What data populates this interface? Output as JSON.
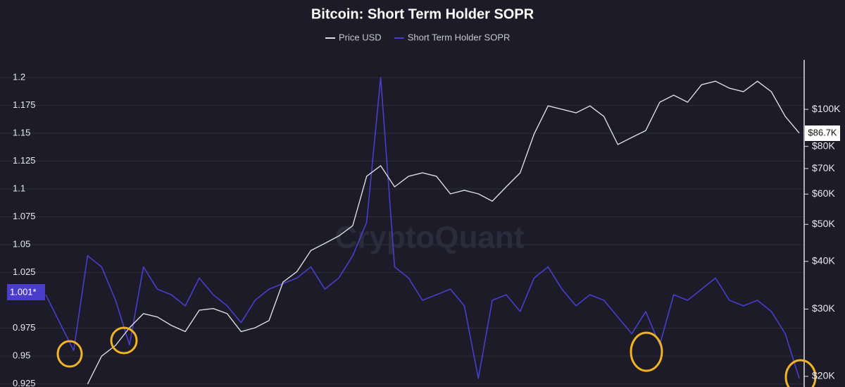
{
  "chart_data": {
    "type": "line",
    "title": "Bitcoin: Short Term Holder SOPR",
    "watermark": "CryptoQuant",
    "legend": "top",
    "grid": true,
    "series": [
      {
        "name": "Price USD",
        "color": "#dcdce4",
        "axis": "y2",
        "values": [
          null,
          null,
          null,
          19100,
          22600,
          24100,
          26800,
          29200,
          28600,
          27200,
          26200,
          29800,
          30100,
          29200,
          26200,
          26800,
          28000,
          35300,
          37600,
          42700,
          44600,
          46600,
          49600,
          66800,
          71200,
          62700,
          66800,
          68200,
          66800,
          60100,
          61400,
          60100,
          57500,
          62700,
          68200,
          86200,
          102100,
          100000,
          97900,
          102100,
          95800,
          80900,
          84400,
          88000,
          104400,
          108900,
          104400,
          116000,
          118500,
          113600,
          111200,
          118500,
          111200,
          95800,
          86700
        ]
      },
      {
        "name": "Short Term Holder SOPR",
        "color": "#4a3dcc",
        "values": [
          1.005,
          0.98,
          0.955,
          1.04,
          1.03,
          1.0,
          0.96,
          1.03,
          1.01,
          1.005,
          0.995,
          1.02,
          1.005,
          0.995,
          0.98,
          1.0,
          1.01,
          1.015,
          1.02,
          1.03,
          1.01,
          1.02,
          1.04,
          1.07,
          1.2,
          1.03,
          1.02,
          1.0,
          1.005,
          1.01,
          0.995,
          0.93,
          1.0,
          1.005,
          0.99,
          1.02,
          1.03,
          1.01,
          0.995,
          1.005,
          1.0,
          0.985,
          0.97,
          0.99,
          0.96,
          1.005,
          1.0,
          1.01,
          1.02,
          1.0,
          0.995,
          1.0,
          0.99,
          0.97,
          0.93
        ]
      }
    ],
    "ylim": [
      0.9222,
      1.2158
    ],
    "yticks": [
      1.2,
      1.175,
      1.15,
      1.125,
      1.1,
      1.075,
      1.05,
      1.025,
      0.975,
      0.95,
      0.925
    ],
    "y2lim": [
      18760,
      134700
    ],
    "y2scale": "log",
    "y2ticks": [
      {
        "value": 100000,
        "label": "$100K"
      },
      {
        "value": 80000,
        "label": "$80K"
      },
      {
        "value": 70000,
        "label": "$70K"
      },
      {
        "value": 60000,
        "label": "$60K"
      },
      {
        "value": 50000,
        "label": "$50K"
      },
      {
        "value": 40000,
        "label": "$40K"
      },
      {
        "value": 30000,
        "label": "$30K"
      },
      {
        "value": 20000,
        "label": "$20K"
      }
    ],
    "annotations": [
      {
        "text": "1.001*"
      },
      {
        "text": "$86.7K"
      }
    ]
  }
}
